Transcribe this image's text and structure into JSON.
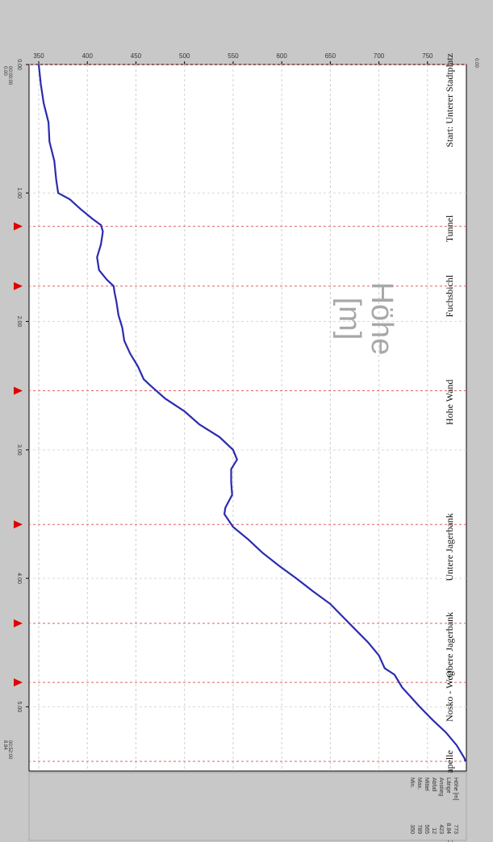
{
  "chart_data": {
    "type": "line",
    "title": "",
    "ylabel": "Höhe\n[m]",
    "xlabel": "",
    "xlim": [
      0,
      11.0
    ],
    "ylim": [
      340,
      790
    ],
    "y_ticks": [
      "350",
      "400",
      "450",
      "500",
      "550",
      "600",
      "650",
      "700",
      "750"
    ],
    "x_ticks": [
      {
        "v": 0,
        "label": "0.00"
      },
      {
        "v": 2,
        "label": "1.00"
      },
      {
        "v": 4,
        "label": "2.00"
      },
      {
        "v": 6,
        "label": "3.00"
      },
      {
        "v": 8,
        "label": "4.00"
      },
      {
        "v": 10,
        "label": "5.00"
      }
    ],
    "left_corner_label": "0.00",
    "start_time": "00:00:00",
    "start_distance": "0.00",
    "end_time": "00:52:00",
    "end_distance": "8.84",
    "legend_rows": [
      {
        "label": "Höhe [m]",
        "value": "773"
      },
      {
        "label": "Länge",
        "value": "8.84"
      },
      {
        "label": "Anstieg",
        "value": "423"
      },
      {
        "label": "Abfall",
        "value": "12"
      },
      {
        "label": "Mittel",
        "value": "565"
      },
      {
        "label": "Max.",
        "value": "789"
      },
      {
        "label": "Min.",
        "value": "350"
      }
    ],
    "waypoints": [
      {
        "x": 0.0,
        "name": "Start: Unterer Stadtplatz",
        "marker": false
      },
      {
        "x": 2.52,
        "name": "Tunnel",
        "marker": true
      },
      {
        "x": 3.45,
        "name": "Fuchsbichl",
        "marker": true
      },
      {
        "x": 5.08,
        "name": "Hohe Wand",
        "marker": true
      },
      {
        "x": 7.16,
        "name": "Untere Jagerbank",
        "marker": true
      },
      {
        "x": 8.7,
        "name": "Obere Jagerbank",
        "marker": true
      },
      {
        "x": 9.62,
        "name": "Nosko - Weg",
        "marker": true
      },
      {
        "x": 10.85,
        "name": "Ziel: Obere Buchenbergkapelle",
        "marker": false
      }
    ],
    "series": [
      {
        "color": "#2b2bb0",
        "x": [
          0.0,
          0.3,
          0.6,
          0.9,
          1.2,
          1.5,
          1.8,
          2.0,
          2.1,
          2.25,
          2.4,
          2.5,
          2.6,
          2.8,
          3.0,
          3.2,
          3.35,
          3.45,
          3.55,
          3.7,
          3.9,
          4.1,
          4.3,
          4.5,
          4.7,
          4.9,
          5.0,
          5.2,
          5.4,
          5.6,
          5.8,
          6.0,
          6.15,
          6.3,
          6.5,
          6.7,
          6.9,
          7.0,
          7.2,
          7.4,
          7.6,
          7.8,
          8.0,
          8.2,
          8.4,
          8.6,
          8.8,
          9.0,
          9.2,
          9.4,
          9.5,
          9.6,
          9.7,
          9.8,
          10.0,
          10.2,
          10.4,
          10.6,
          10.8,
          10.85
        ],
        "y": [
          350,
          352,
          355,
          360,
          361,
          366,
          368,
          370,
          382,
          393,
          405,
          414,
          416,
          414,
          410,
          412,
          420,
          427,
          428,
          430,
          432,
          436,
          438,
          444,
          452,
          458,
          465,
          480,
          500,
          515,
          536,
          550,
          554,
          548,
          548,
          549,
          542,
          541,
          550,
          566,
          580,
          597,
          615,
          632,
          650,
          663,
          676,
          689,
          700,
          706,
          716,
          720,
          724,
          730,
          742,
          755,
          769,
          780,
          788,
          789
        ]
      }
    ]
  }
}
